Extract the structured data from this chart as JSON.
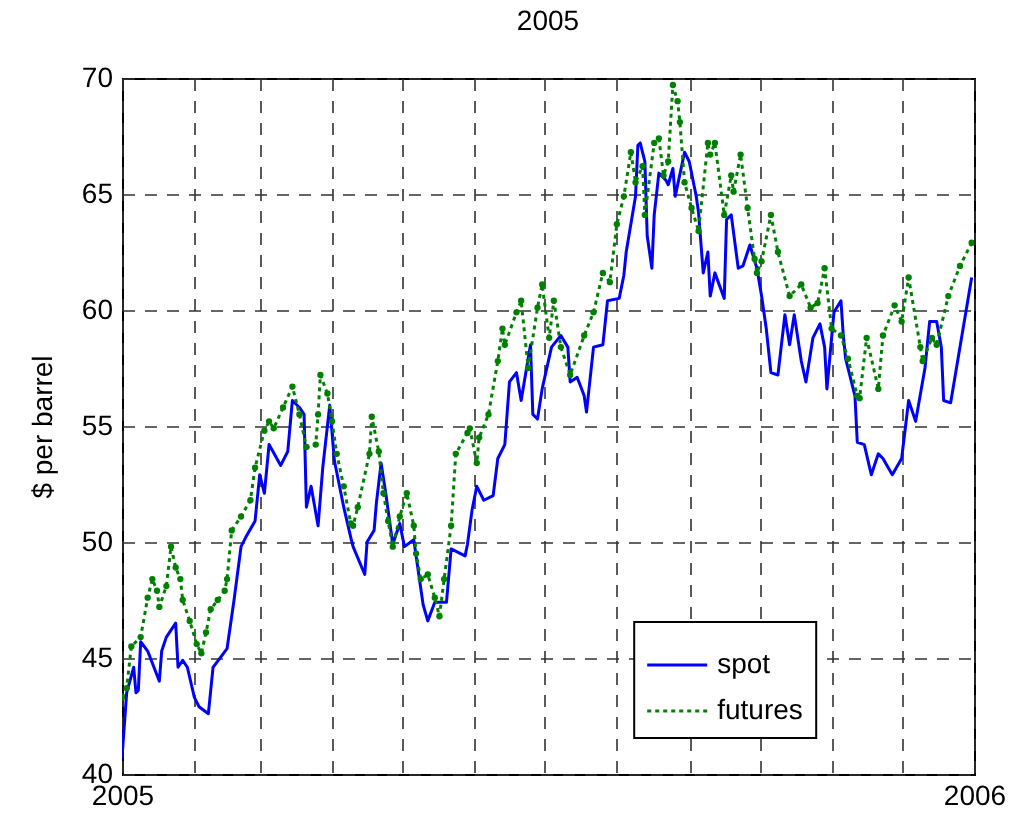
{
  "chart_data": {
    "type": "line",
    "title": "2005",
    "ylabel": "$ per barrel",
    "xlim": [
      "2005-01-01",
      "2006-01-01"
    ],
    "xticks": [
      {
        "value": "2005-01-01",
        "label": "2005"
      },
      {
        "value": "2005-02-01",
        "label": null
      },
      {
        "value": "2005-03-01",
        "label": null
      },
      {
        "value": "2005-04-01",
        "label": null
      },
      {
        "value": "2005-05-01",
        "label": null
      },
      {
        "value": "2005-06-01",
        "label": null
      },
      {
        "value": "2005-07-01",
        "label": null
      },
      {
        "value": "2005-08-01",
        "label": null
      },
      {
        "value": "2005-09-01",
        "label": null
      },
      {
        "value": "2005-10-01",
        "label": null
      },
      {
        "value": "2005-11-01",
        "label": null
      },
      {
        "value": "2005-12-01",
        "label": null
      },
      {
        "value": "2006-01-01",
        "label": "2006"
      }
    ],
    "ylim": [
      40,
      70
    ],
    "yticks": [
      40,
      45,
      50,
      55,
      60,
      65,
      70
    ],
    "grid": true,
    "legend": "bottom right",
    "series": [
      {
        "name": "spot",
        "color": "#0000ff",
        "line_style": "solid",
        "marker": "none",
        "x": [
          "2005-01-01",
          "2005-01-03",
          "2005-01-06",
          "2005-01-07",
          "2005-01-08",
          "2005-01-09",
          "2005-01-12",
          "2005-01-17",
          "2005-01-18",
          "2005-01-20",
          "2005-01-24",
          "2005-01-25",
          "2005-01-27",
          "2005-01-29",
          "2005-02-01",
          "2005-02-03",
          "2005-02-07",
          "2005-02-09",
          "2005-02-15",
          "2005-02-18",
          "2005-02-21",
          "2005-02-23",
          "2005-02-27",
          "2005-03-01",
          "2005-03-03",
          "2005-03-05",
          "2005-03-10",
          "2005-03-13",
          "2005-03-15",
          "2005-03-18",
          "2005-03-20",
          "2005-03-21",
          "2005-03-23",
          "2005-03-26",
          "2005-03-28",
          "2005-03-31",
          "2005-04-02",
          "2005-04-06",
          "2005-04-09",
          "2005-04-10",
          "2005-04-15",
          "2005-04-16",
          "2005-04-19",
          "2005-04-20",
          "2005-04-22",
          "2005-04-24",
          "2005-04-27",
          "2005-04-30",
          "2005-05-02",
          "2005-05-06",
          "2005-05-10",
          "2005-05-12",
          "2005-05-15",
          "2005-05-20",
          "2005-05-22",
          "2005-05-28",
          "2005-05-29",
          "2005-05-31",
          "2005-06-02",
          "2005-06-05",
          "2005-06-09",
          "2005-06-11",
          "2005-06-14",
          "2005-06-16",
          "2005-06-19",
          "2005-06-21",
          "2005-06-25",
          "2005-06-26",
          "2005-06-28",
          "2005-06-30",
          "2005-07-04",
          "2005-07-08",
          "2005-07-11",
          "2005-07-12",
          "2005-07-15",
          "2005-07-18",
          "2005-07-19",
          "2005-07-22",
          "2005-07-26",
          "2005-07-28",
          "2005-08-02",
          "2005-08-04",
          "2005-08-05",
          "2005-08-09",
          "2005-08-10",
          "2005-08-11",
          "2005-08-13",
          "2005-08-14",
          "2005-08-16",
          "2005-08-17",
          "2005-08-19",
          "2005-08-22",
          "2005-08-23",
          "2005-08-25",
          "2005-08-26",
          "2005-08-30",
          "2005-09-01",
          "2005-09-04",
          "2005-09-05",
          "2005-09-07",
          "2005-09-09",
          "2005-09-10",
          "2005-09-12",
          "2005-09-16",
          "2005-09-17",
          "2005-09-19",
          "2005-09-22",
          "2005-09-24",
          "2005-09-27",
          "2005-09-30",
          "2005-10-02",
          "2005-10-04",
          "2005-10-06",
          "2005-10-09",
          "2005-10-12",
          "2005-10-14",
          "2005-10-16",
          "2005-10-19",
          "2005-10-21",
          "2005-10-24",
          "2005-10-27",
          "2005-10-29",
          "2005-10-30",
          "2005-11-02",
          "2005-11-05",
          "2005-11-06",
          "2005-11-07",
          "2005-11-11",
          "2005-11-12",
          "2005-11-15",
          "2005-11-18",
          "2005-11-21",
          "2005-11-23",
          "2005-11-27",
          "2005-12-01",
          "2005-12-04",
          "2005-12-07",
          "2005-12-11",
          "2005-12-13",
          "2005-12-16",
          "2005-12-18",
          "2005-12-19",
          "2005-12-22",
          "2005-12-26",
          "2005-12-31"
        ],
        "values": [
          40.7,
          43.5,
          44.6,
          43.5,
          43.6,
          45.7,
          45.3,
          44.0,
          45.3,
          45.9,
          46.5,
          44.6,
          44.9,
          44.6,
          43.3,
          42.9,
          42.6,
          44.6,
          45.4,
          47.5,
          49.8,
          50.2,
          50.9,
          52.9,
          52.1,
          54.2,
          53.3,
          53.9,
          56.1,
          55.8,
          55.5,
          51.5,
          52.4,
          50.7,
          53.2,
          55.9,
          53.5,
          51.5,
          50.2,
          49.8,
          48.6,
          50.0,
          50.5,
          51.7,
          53.4,
          52.1,
          49.9,
          50.8,
          49.8,
          50.1,
          47.3,
          46.6,
          47.4,
          47.4,
          49.7,
          49.4,
          49.9,
          51.4,
          52.4,
          51.8,
          52.0,
          53.6,
          54.2,
          56.9,
          57.3,
          56.1,
          58.5,
          55.5,
          55.3,
          56.6,
          58.4,
          58.9,
          58.4,
          56.9,
          57.1,
          56.3,
          55.6,
          58.4,
          58.5,
          60.4,
          60.5,
          61.5,
          62.5,
          64.9,
          67.1,
          67.2,
          66.4,
          63.2,
          61.8,
          64.1,
          65.9,
          65.6,
          65.4,
          66.1,
          64.9,
          66.8,
          66.4,
          64.9,
          64.2,
          61.6,
          62.5,
          60.6,
          61.6,
          60.5,
          63.9,
          64.1,
          61.8,
          61.9,
          62.8,
          61.8,
          60.6,
          59.2,
          57.3,
          57.2,
          59.8,
          58.5,
          59.8,
          57.8,
          56.9,
          58.8,
          59.4,
          58.4,
          56.6,
          59.9,
          60.4,
          58.9,
          57.9,
          56.3,
          54.3,
          54.2,
          52.9,
          53.8,
          53.6,
          52.9,
          53.6,
          56.1,
          55.2,
          57.5,
          59.5,
          59.5,
          58.4,
          56.1,
          56.0,
          58.4,
          61.4
        ]
      },
      {
        "name": "futures",
        "color": "#008000",
        "line_style": "dotted",
        "marker": "circle",
        "x": [
          "2005-01-01",
          "2005-01-03",
          "2005-01-05",
          "2005-01-09",
          "2005-01-12",
          "2005-01-14",
          "2005-01-16",
          "2005-01-17",
          "2005-01-20",
          "2005-01-22",
          "2005-01-24",
          "2005-01-26",
          "2005-01-27",
          "2005-01-30",
          "2005-02-02",
          "2005-02-04",
          "2005-02-06",
          "2005-02-08",
          "2005-02-11",
          "2005-02-14",
          "2005-02-15",
          "2005-02-17",
          "2005-02-21",
          "2005-02-25",
          "2005-02-27",
          "2005-03-03",
          "2005-03-05",
          "2005-03-07",
          "2005-03-11",
          "2005-03-15",
          "2005-03-18",
          "2005-03-21",
          "2005-03-25",
          "2005-03-26",
          "2005-03-27",
          "2005-03-30",
          "2005-04-01",
          "2005-04-03",
          "2005-04-06",
          "2005-04-09",
          "2005-04-10",
          "2005-04-12",
          "2005-04-17",
          "2005-04-18",
          "2005-04-21",
          "2005-04-23",
          "2005-04-25",
          "2005-04-27",
          "2005-04-30",
          "2005-05-03",
          "2005-05-06",
          "2005-05-07",
          "2005-05-09",
          "2005-05-12",
          "2005-05-15",
          "2005-05-17",
          "2005-05-19",
          "2005-05-22",
          "2005-05-24",
          "2005-05-29",
          "2005-05-30",
          "2005-06-02",
          "2005-06-03",
          "2005-06-07",
          "2005-06-11",
          "2005-06-13",
          "2005-06-14",
          "2005-06-19",
          "2005-06-21",
          "2005-06-24",
          "2005-06-28",
          "2005-06-30",
          "2005-07-03",
          "2005-07-05",
          "2005-07-08",
          "2005-07-12",
          "2005-07-18",
          "2005-07-22",
          "2005-07-26",
          "2005-07-29",
          "2005-08-01",
          "2005-08-04",
          "2005-08-07",
          "2005-08-09",
          "2005-08-12",
          "2005-08-13",
          "2005-08-17",
          "2005-08-19",
          "2005-08-21",
          "2005-08-23",
          "2005-08-25",
          "2005-08-27",
          "2005-08-28",
          "2005-08-30",
          "2005-09-02",
          "2005-09-05",
          "2005-09-09",
          "2005-09-10",
          "2005-09-12",
          "2005-09-16",
          "2005-09-19",
          "2005-09-20",
          "2005-09-23",
          "2005-09-26",
          "2005-09-29",
          "2005-09-30",
          "2005-10-02",
          "2005-10-06",
          "2005-10-09",
          "2005-10-14",
          "2005-10-19",
          "2005-10-23",
          "2005-10-26",
          "2005-10-29",
          "2005-11-01",
          "2005-11-05",
          "2005-11-08",
          "2005-11-12",
          "2005-11-13",
          "2005-11-16",
          "2005-11-21",
          "2005-11-23",
          "2005-11-28",
          "2005-12-01",
          "2005-12-04",
          "2005-12-09",
          "2005-12-10",
          "2005-12-14",
          "2005-12-16",
          "2005-12-21",
          "2005-12-26",
          "2005-12-31"
        ],
        "values": [
          43.3,
          43.7,
          45.5,
          45.9,
          47.6,
          48.4,
          47.9,
          47.2,
          48.1,
          49.8,
          48.9,
          48.4,
          47.5,
          46.6,
          45.6,
          45.2,
          46.1,
          47.1,
          47.5,
          47.9,
          48.4,
          50.5,
          51.1,
          51.8,
          53.2,
          54.8,
          55.2,
          54.9,
          55.8,
          56.7,
          55.5,
          54.1,
          54.2,
          55.5,
          57.2,
          56.4,
          55.2,
          53.8,
          52.4,
          50.8,
          50.7,
          51.5,
          53.8,
          55.4,
          53.9,
          52.1,
          50.9,
          49.8,
          51.1,
          52.1,
          50.7,
          49.5,
          48.4,
          48.6,
          47.6,
          46.8,
          48.4,
          50.7,
          53.8,
          54.7,
          54.9,
          53.4,
          54.5,
          55.5,
          57.8,
          59.2,
          58.5,
          59.9,
          60.4,
          57.5,
          60.1,
          61.1,
          58.8,
          60.4,
          58.4,
          57.2,
          58.9,
          59.9,
          61.6,
          61.2,
          63.7,
          64.9,
          66.8,
          65.5,
          66.2,
          64.1,
          67.2,
          67.4,
          65.8,
          66.4,
          69.7,
          69.0,
          68.1,
          65.5,
          64.4,
          63.4,
          67.2,
          66.7,
          67.2,
          64.1,
          65.8,
          65.1,
          66.7,
          64.4,
          62.2,
          61.6,
          62.1,
          64.1,
          62.5,
          60.6,
          61.1,
          60.1,
          60.3,
          61.8,
          59.2,
          58.9,
          57.9,
          56.3,
          56.2,
          58.8,
          56.6,
          58.9,
          60.2,
          59.5,
          61.4,
          58.4,
          57.8,
          58.8,
          58.5,
          60.6,
          61.9,
          62.9
        ]
      }
    ]
  }
}
